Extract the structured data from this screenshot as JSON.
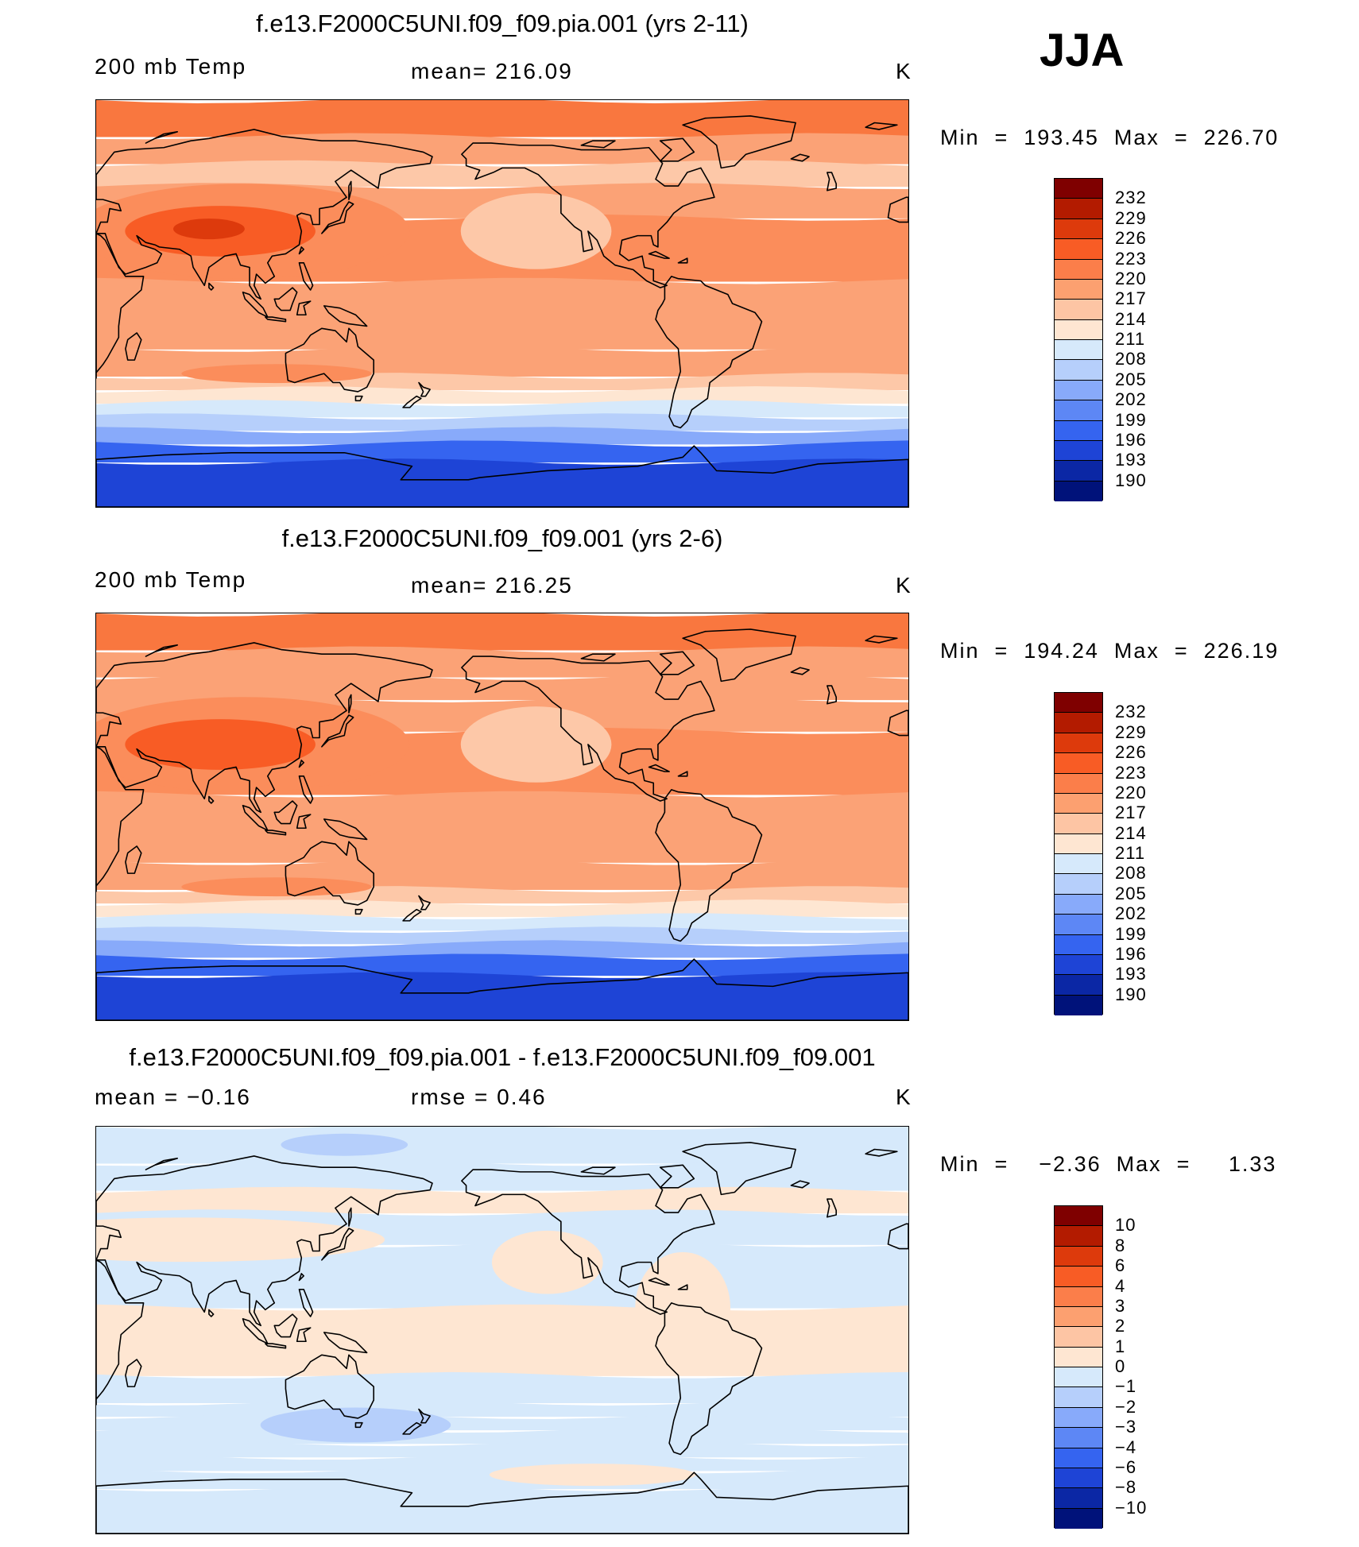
{
  "season": "JJA",
  "panels": [
    {
      "id": "panel1",
      "title": "f.e13.F2000C5UNI.f09_f09.pia.001 (yrs 2-11)",
      "left_label": "200 mb Temp",
      "center_label": "mean=  216.09",
      "unit": "K",
      "minmax": "Min  =  193.45  Max  =  226.70",
      "colorbar": {
        "labels": [
          "232",
          "229",
          "226",
          "223",
          "220",
          "217",
          "214",
          "211",
          "208",
          "205",
          "202",
          "199",
          "196",
          "193",
          "190"
        ],
        "colors": [
          "#7f0000",
          "#b31b00",
          "#dd3a0c",
          "#f85c25",
          "#fb7e4a",
          "#fca070",
          "#fdc5a4",
          "#fee6d2",
          "#d6e9fb",
          "#b6cffb",
          "#88aafa",
          "#5d87f5",
          "#3564f0",
          "#1e44d6",
          "#0b27a5",
          "#00127a"
        ]
      },
      "bands": [
        "#f9773f",
        "#fba276",
        "#fdc8a8",
        "#fba276",
        "#fb8d5b",
        "#fba276",
        "#fba276",
        "#fdc8a8",
        "#fee6d2",
        "#d6e9fb",
        "#b6cffb",
        "#88aafa",
        "#3564f0",
        "#1e44d6"
      ]
    },
    {
      "id": "panel2",
      "title": "f.e13.F2000C5UNI.f09_f09.001 (yrs 2-6)",
      "left_label": "200 mb Temp",
      "center_label": "mean=  216.25",
      "unit": "K",
      "minmax": "Min  =  194.24  Max  =  226.19",
      "colorbar": {
        "labels": [
          "232",
          "229",
          "226",
          "223",
          "220",
          "217",
          "214",
          "211",
          "208",
          "205",
          "202",
          "199",
          "196",
          "193",
          "190"
        ],
        "colors": [
          "#7f0000",
          "#b31b00",
          "#dd3a0c",
          "#f85c25",
          "#fb7e4a",
          "#fca070",
          "#fdc5a4",
          "#fee6d2",
          "#d6e9fb",
          "#b6cffb",
          "#88aafa",
          "#5d87f5",
          "#3564f0",
          "#1e44d6",
          "#0b27a5",
          "#00127a"
        ]
      },
      "bands": [
        "#f9773f",
        "#fba276",
        "#fba276",
        "#fba276",
        "#fb8d5b",
        "#fba276",
        "#fba276",
        "#fdc8a8",
        "#fee6d2",
        "#d6e9fb",
        "#b6cffb",
        "#88aafa",
        "#3564f0",
        "#1e44d6"
      ]
    },
    {
      "id": "panel3",
      "title": "f.e13.F2000C5UNI.f09_f09.pia.001 - f.e13.F2000C5UNI.f09_f09.001",
      "left_label": "mean =   −0.16",
      "center_label": "rmse =     0.46",
      "unit": "K",
      "minmax": "Min  =    −2.36  Max  =     1.33",
      "colorbar": {
        "labels": [
          "10",
          "8",
          "6",
          "4",
          "3",
          "2",
          "1",
          "0",
          "−1",
          "−2",
          "−3",
          "−4",
          "−6",
          "−8",
          "−10"
        ],
        "colors": [
          "#7f0000",
          "#b31b00",
          "#dd3a0c",
          "#f85c25",
          "#fb7e4a",
          "#fca070",
          "#fdc5a4",
          "#fee6d2",
          "#d6e9fb",
          "#b6cffb",
          "#88aafa",
          "#5d87f5",
          "#3564f0",
          "#1e44d6",
          "#0b27a5",
          "#00127a"
        ]
      },
      "bands": [
        "#d6e9fb",
        "#d6e9fb",
        "#fee6d2",
        "#d6e9fb",
        "#d6e9fb",
        "#fee6d2",
        "#d6e9fb",
        "#d6e9fb",
        "#d6e9fb",
        "#d6e9fb",
        "#d6e9fb",
        "#d6e9fb",
        "#d6e9fb",
        "#d6e9fb"
      ]
    }
  ]
}
